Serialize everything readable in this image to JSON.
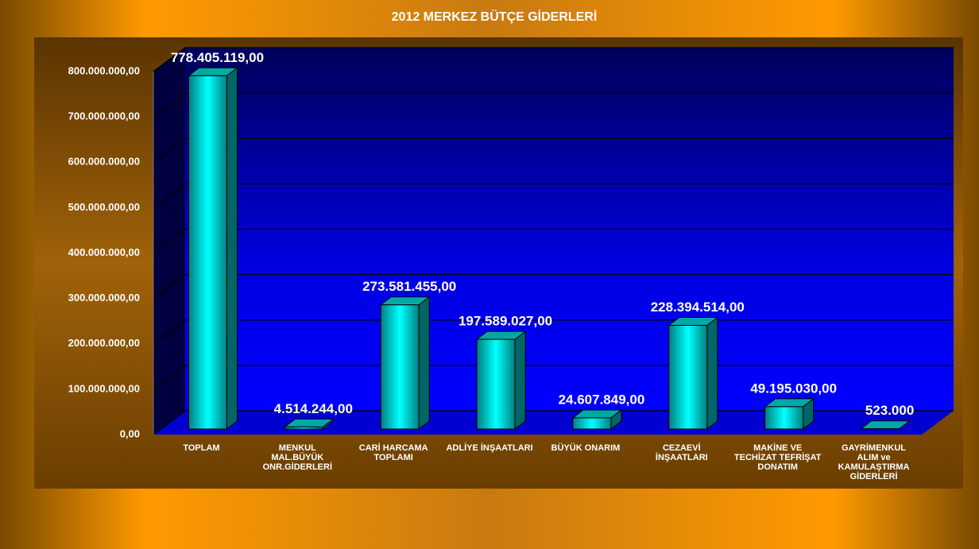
{
  "chart_data": {
    "type": "bar3d",
    "title": "2012 MERKEZ BÜTÇE GİDERLERİ",
    "categories": [
      "TOPLAM",
      "MENKUL MAL.BÜYÜK ONR.GİDERLERİ",
      "CARİ HARCAMA TOPLAMI",
      "ADLİYE İNŞAATLARI",
      "BÜYÜK ONARIM",
      "CEZAEVİ İNŞAATLARI",
      "MAKİNE VE TECHİZAT TEFRİŞAT DONATIM",
      "GAYRİMENKUL ALIM ve KAMULAŞTIRMA GİDERLERİ"
    ],
    "values": [
      778405119,
      4514244,
      273581455,
      197589027,
      24607849,
      228394514,
      49195030,
      523000
    ],
    "value_labels": [
      "778.405.119,00",
      "4.514.244,00",
      "273.581.455,00",
      "197.589.027,00",
      "24.607.849,00",
      "228.394.514,00",
      "49.195.030,00",
      "523.000"
    ],
    "color": "#00ffff",
    "ylim": [
      0,
      800000000
    ],
    "yticks": [
      {
        "value": 0,
        "label": "0,00"
      },
      {
        "value": 100000000,
        "label": "100.000.000,00"
      },
      {
        "value": 200000000,
        "label": "200.000.000,00"
      },
      {
        "value": 300000000,
        "label": "300.000.000,00"
      },
      {
        "value": 400000000,
        "label": "400.000.000,00"
      },
      {
        "value": 500000000,
        "label": "500.000.000,00"
      },
      {
        "value": 600000000,
        "label": "600.000.000,00"
      },
      {
        "value": 700000000,
        "label": "700.000.000,00"
      },
      {
        "value": 800000000,
        "label": "800.000.000,00"
      }
    ],
    "grid": true
  }
}
